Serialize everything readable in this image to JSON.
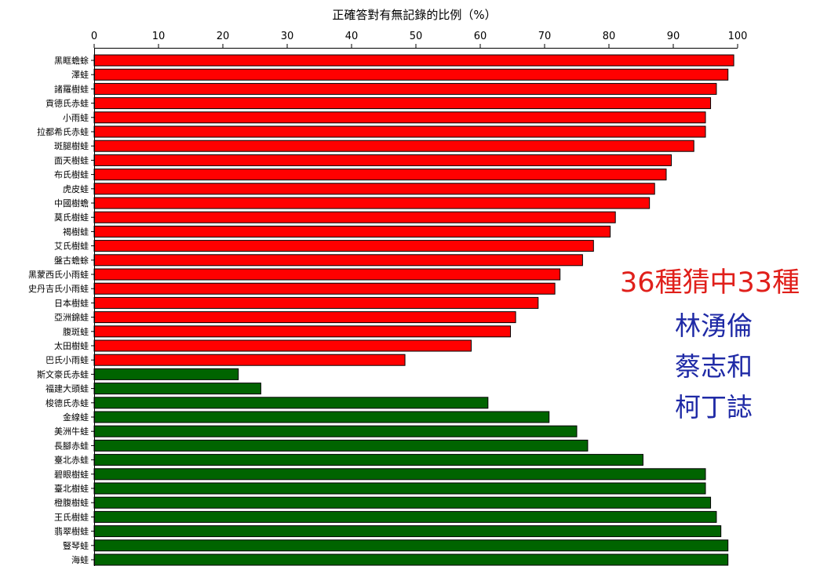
{
  "chart_data": {
    "type": "bar",
    "orientation": "horizontal",
    "title": "正確答對有無記錄的比例（%）",
    "xlim": [
      0,
      100
    ],
    "xticks": [
      0,
      10,
      20,
      30,
      40,
      50,
      60,
      70,
      80,
      90,
      100
    ],
    "x_axis_position": "top",
    "grid": false,
    "categories": [
      "黑眶蟾蜍",
      "澤蛙",
      "諸羅樹蛙",
      "貢德氏赤蛙",
      "小雨蛙",
      "拉都希氏赤蛙",
      "斑腿樹蛙",
      "面天樹蛙",
      "布氏樹蛙",
      "虎皮蛙",
      "中國樹蟾",
      "莫氏樹蛙",
      "褐樹蛙",
      "艾氏樹蛙",
      "盤古蟾蜍",
      "黑蒙西氏小雨蛙",
      "史丹吉氏小雨蛙",
      "日本樹蛙",
      "亞洲錦蛙",
      "腹斑蛙",
      "太田樹蛙",
      "巴氏小雨蛙",
      "斯文豪氏赤蛙",
      "福建大頭蛙",
      "梭德氏赤蛙",
      "金線蛙",
      "美洲牛蛙",
      "長腳赤蛙",
      "臺北赤蛙",
      "碧眼樹蛙",
      "臺北樹蛙",
      "橙腹樹蛙",
      "王氏樹蛙",
      "翡翠樹蛙",
      "豎琴蛙",
      "海蛙"
    ],
    "values": [
      99.4,
      98.5,
      96.7,
      95.8,
      95.0,
      95.0,
      93.2,
      89.7,
      88.9,
      87.1,
      86.3,
      81.0,
      80.2,
      77.6,
      75.9,
      72.4,
      71.6,
      69.0,
      65.5,
      64.7,
      58.6,
      48.3,
      22.4,
      25.9,
      61.2,
      70.7,
      75.0,
      76.7,
      85.3,
      95.0,
      95.0,
      95.8,
      96.7,
      97.4,
      98.5,
      98.5
    ],
    "bar_colors": [
      "#ff0000",
      "#ff0000",
      "#ff0000",
      "#ff0000",
      "#ff0000",
      "#ff0000",
      "#ff0000",
      "#ff0000",
      "#ff0000",
      "#ff0000",
      "#ff0000",
      "#ff0000",
      "#ff0000",
      "#ff0000",
      "#ff0000",
      "#ff0000",
      "#ff0000",
      "#ff0000",
      "#ff0000",
      "#ff0000",
      "#ff0000",
      "#ff0000",
      "#006400",
      "#006400",
      "#006400",
      "#006400",
      "#006400",
      "#006400",
      "#006400",
      "#006400",
      "#006400",
      "#006400",
      "#006400",
      "#006400",
      "#006400",
      "#006400"
    ],
    "annotations": [
      {
        "text": "36種猜中33種",
        "color": "#e0201b"
      },
      {
        "text": "林湧倫",
        "color": "#1f2aa6"
      },
      {
        "text": "蔡志和",
        "color": "#1f2aa6"
      },
      {
        "text": "柯丁誌",
        "color": "#1f2aa6"
      }
    ]
  }
}
